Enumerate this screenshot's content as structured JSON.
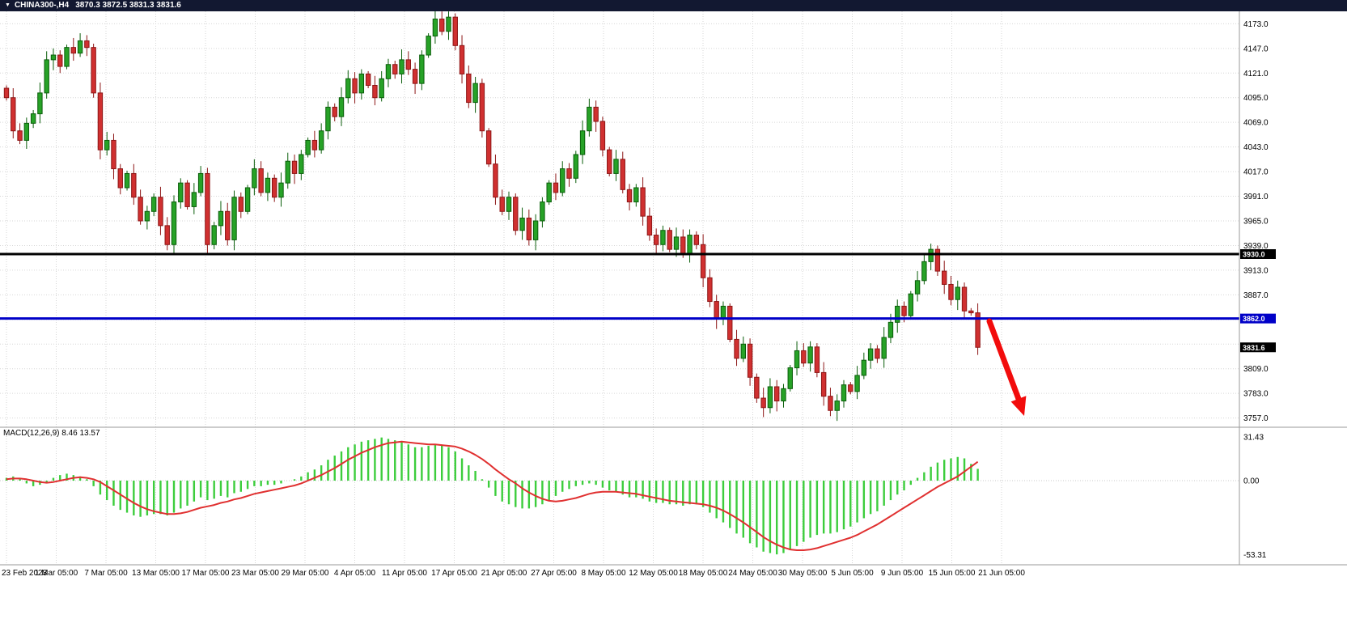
{
  "title_bar": {
    "dropdown_icon": "▼",
    "symbol": "CHINA300-,H4",
    "ohlc_text": "3870.3 3872.5 3831.3 3831.6"
  },
  "colors": {
    "bull": "#27a227",
    "bull_border": "#0b5e0b",
    "bear": "#d03030",
    "bear_border": "#8d1616",
    "grid": "#d6d6d6",
    "panel_border": "#9a9a9a",
    "hline_black": "#000000",
    "hline_blue": "#0000c8",
    "macd_bar": "#3ccd3c",
    "macd_signal": "#e03030",
    "arrow": "#f20c0c",
    "titlebar_bg": "#121831",
    "tag_black_bg": "#000000",
    "tag_blue_bg": "#0000c8"
  },
  "price_axis": {
    "min": 3749,
    "max": 4181,
    "grid_levels": [
      4173,
      4147,
      4121,
      4095,
      4069,
      4043,
      4017,
      3991,
      3965,
      3939,
      3913,
      3887,
      3861,
      3835,
      3809,
      3783,
      3757
    ],
    "hidden_levels": [
      3861,
      3835
    ],
    "label_suffix": ".0"
  },
  "hlines": [
    {
      "value": 3930.0,
      "label": "3930.0",
      "color_key": "hline_black",
      "width": 3
    },
    {
      "value": 3862.0,
      "label": "3862.0",
      "color_key": "hline_blue",
      "width": 3
    }
  ],
  "current_price": {
    "value": 3831.6,
    "label": "3831.6"
  },
  "macd_panel": {
    "label": "MACD(12,26,9) 8.46 13.57",
    "axis_labels": [
      {
        "text": "31.43",
        "value": 31.43
      },
      {
        "text": "0.00",
        "value": 0
      },
      {
        "text": "-53.31",
        "value": -53.31
      }
    ],
    "max": 31.43,
    "min": -53.31
  },
  "chart_data": {
    "type": "candlestick",
    "title": "CHINA300-,H4 3870.3 3872.5 3831.3 3831.6",
    "symbol": "CHINA300-",
    "timeframe": "H4",
    "ylim": [
      3749,
      4181
    ],
    "grid": true,
    "x_labels": [
      "23 Feb 2023",
      "1 Mar 05:00",
      "7 Mar 05:00",
      "13 Mar 05:00",
      "17 Mar 05:00",
      "23 Mar 05:00",
      "29 Mar 05:00",
      "4 Apr 05:00",
      "11 Apr 05:00",
      "17 Apr 05:00",
      "21 Apr 05:00",
      "27 Apr 05:00",
      "8 May 05:00",
      "12 May 05:00",
      "18 May 05:00",
      "24 May 05:00",
      "30 May 05:00",
      "5 Jun 05:00",
      "9 Jun 05:00",
      "15 Jun 05:00",
      "21 Jun 05:00"
    ],
    "closes": [
      4095,
      4060,
      4050,
      4068,
      4078,
      4100,
      4135,
      4140,
      4128,
      4148,
      4142,
      4155,
      4148,
      4100,
      4040,
      4050,
      4020,
      4000,
      4015,
      3990,
      3965,
      3975,
      3990,
      3960,
      3940,
      3985,
      4005,
      3980,
      3995,
      4015,
      3940,
      3960,
      3975,
      3945,
      3990,
      3975,
      4000,
      4020,
      3995,
      4010,
      3990,
      4005,
      4028,
      4015,
      4035,
      4050,
      4040,
      4060,
      4085,
      4075,
      4095,
      4115,
      4100,
      4120,
      4108,
      4095,
      4115,
      4130,
      4120,
      4135,
      4125,
      4110,
      4140,
      4160,
      4178,
      4165,
      4180,
      4150,
      4120,
      4090,
      4110,
      4060,
      4025,
      3990,
      3975,
      3990,
      3955,
      3968,
      3945,
      3965,
      3985,
      4005,
      3995,
      4020,
      4010,
      4035,
      4060,
      4085,
      4070,
      4040,
      4015,
      4030,
      3998,
      3985,
      4000,
      3970,
      3950,
      3940,
      3955,
      3935,
      3948,
      3930,
      3950,
      3940,
      3905,
      3880,
      3862,
      3875,
      3840,
      3820,
      3835,
      3800,
      3778,
      3768,
      3790,
      3775,
      3788,
      3810,
      3828,
      3815,
      3832,
      3805,
      3780,
      3765,
      3775,
      3792,
      3785,
      3802,
      3818,
      3830,
      3820,
      3842,
      3858,
      3875,
      3865,
      3888,
      3902,
      3922,
      3935,
      3912,
      3898,
      3882,
      3895,
      3870,
      3868,
      3831.6
    ],
    "macd_histogram": [
      2,
      3,
      1,
      -2,
      -4,
      -3,
      -1,
      2,
      4,
      5,
      4,
      3,
      1,
      -4,
      -10,
      -14,
      -18,
      -21,
      -23,
      -25,
      -26,
      -25,
      -24,
      -24,
      -25,
      -23,
      -20,
      -18,
      -15,
      -12,
      -14,
      -13,
      -11,
      -12,
      -9,
      -8,
      -6,
      -4,
      -4,
      -3,
      -3,
      -2,
      0,
      1,
      3,
      6,
      8,
      11,
      15,
      18,
      21,
      24,
      26,
      28,
      29,
      30,
      31,
      30,
      29,
      28,
      26,
      24,
      24,
      25,
      26,
      25,
      24,
      21,
      16,
      11,
      7,
      1,
      -5,
      -11,
      -15,
      -17,
      -19,
      -20,
      -20,
      -19,
      -17,
      -14,
      -11,
      -8,
      -6,
      -4,
      -3,
      -2,
      -3,
      -5,
      -7,
      -8,
      -10,
      -12,
      -12,
      -13,
      -15,
      -16,
      -16,
      -17,
      -17,
      -18,
      -17,
      -17,
      -19,
      -23,
      -27,
      -30,
      -34,
      -38,
      -41,
      -45,
      -48,
      -51,
      -52,
      -53,
      -52,
      -50,
      -47,
      -44,
      -41,
      -39,
      -38,
      -38,
      -37,
      -35,
      -33,
      -30,
      -27,
      -24,
      -22,
      -18,
      -14,
      -10,
      -7,
      -3,
      2,
      6,
      10,
      13,
      15,
      16,
      17,
      16,
      12,
      8.46
    ],
    "macd_signal": [
      1,
      1.5,
      1.5,
      1,
      0,
      -1,
      -1.5,
      -1,
      0,
      1,
      2,
      2.5,
      2,
      1,
      -1,
      -4,
      -7,
      -10,
      -13,
      -16,
      -18.5,
      -20.5,
      -22,
      -23,
      -24,
      -24,
      -23.5,
      -22.5,
      -21,
      -19.5,
      -18.5,
      -17.5,
      -16,
      -15,
      -13.5,
      -12.5,
      -11,
      -9.5,
      -8.5,
      -7.5,
      -6.5,
      -5.5,
      -4.5,
      -3.5,
      -2,
      0,
      2,
      4,
      6.5,
      9,
      12,
      15,
      17.5,
      20,
      22,
      24,
      25.5,
      27,
      27.5,
      28,
      27.5,
      27,
      26.5,
      26,
      26,
      25.5,
      25,
      24.5,
      23,
      21,
      18.5,
      15.5,
      12,
      8,
      4.5,
      1,
      -2,
      -5.5,
      -8.5,
      -11,
      -13,
      -14.5,
      -15,
      -14.5,
      -13.5,
      -12.5,
      -11,
      -9.5,
      -8.5,
      -8,
      -8,
      -8,
      -8.5,
      -9,
      -9.5,
      -10.5,
      -11.5,
      -12.5,
      -13.5,
      -14.5,
      -15,
      -15.5,
      -16,
      -16.5,
      -17,
      -18,
      -19.5,
      -21.5,
      -24,
      -27,
      -30,
      -33.5,
      -37,
      -40.5,
      -43.5,
      -46,
      -48,
      -49.5,
      -50,
      -50,
      -49.5,
      -48.5,
      -47,
      -45.5,
      -44,
      -42.5,
      -41,
      -39,
      -36.5,
      -34,
      -31.5,
      -28.5,
      -25.5,
      -22.5,
      -19.5,
      -16.5,
      -13.5,
      -10.5,
      -7.5,
      -4.5,
      -2,
      0.5,
      3,
      6.5,
      10,
      13.57
    ],
    "hlines": [
      3930.0,
      3862.0
    ],
    "last_price": 3831.6,
    "annotation": {
      "shape": "arrow",
      "direction": "down-right",
      "color": "#f20c0c",
      "from_price": 3858,
      "to_price": 3762
    }
  }
}
